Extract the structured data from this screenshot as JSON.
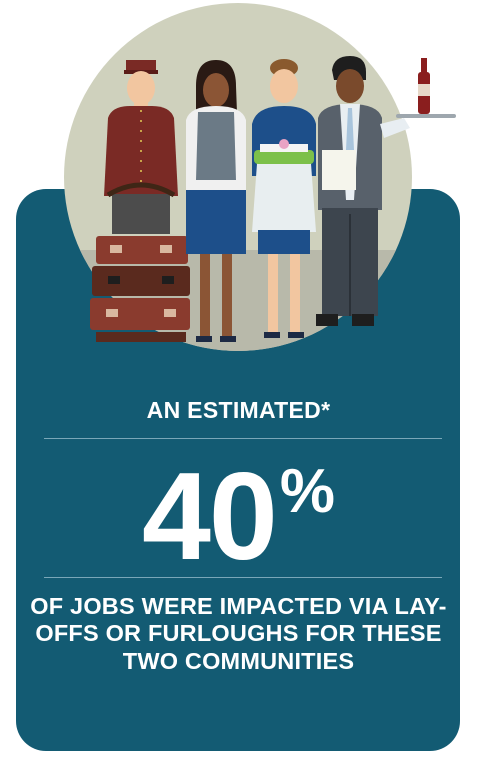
{
  "colors": {
    "card_bg": "#135b73",
    "circle_bg": "#cfd1bd",
    "text": "#ffffff"
  },
  "illustration": {
    "figures": [
      "bellhop-with-luggage",
      "receptionist",
      "housekeeper",
      "waiter-with-wine-tray"
    ]
  },
  "stat": {
    "lead": "AN ESTIMATED*",
    "value": "40",
    "unit": "%",
    "description": "OF JOBS WERE IMPACTED VIA LAY-OFFS OR FURLOUGHS FOR THESE TWO COMMUNITIES"
  }
}
